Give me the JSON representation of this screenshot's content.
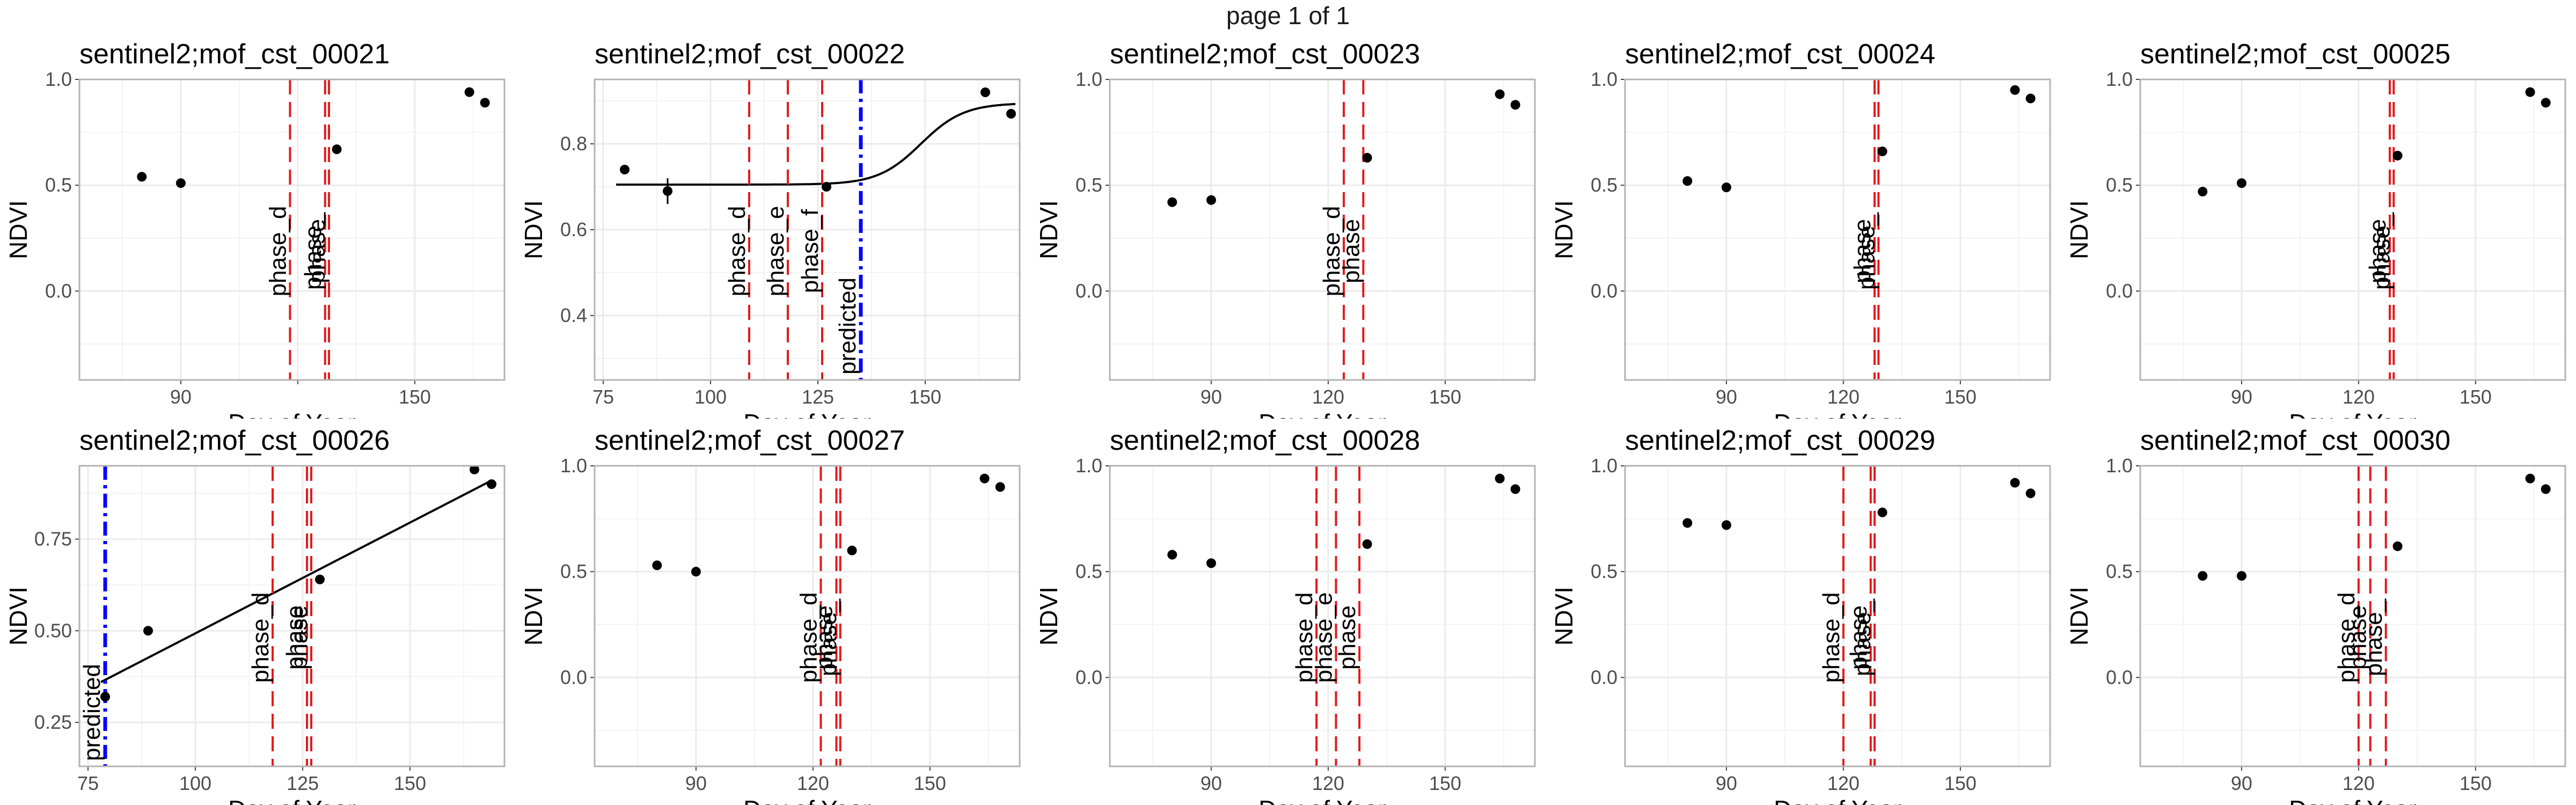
{
  "page_title": "page 1 of 1",
  "colors": {
    "vline": "#e31a1c",
    "predicted": "#0000ff",
    "points": "#000000",
    "grid": "#ebebeb",
    "frame": "#b3b3b3"
  },
  "chart_data": [
    {
      "type": "scatter",
      "title": "sentinel2;mof_cst_00021",
      "xlabel": "Day of Year",
      "ylabel": "NDVI",
      "xlim": [
        64,
        173
      ],
      "ylim": [
        -0.42,
        1.0
      ],
      "xticks": [
        90,
        120,
        150
      ],
      "xtick_labels": [
        "90",
        "",
        "150"
      ],
      "yticks": [
        0.0,
        0.5,
        1.0
      ],
      "ytick_labels": [
        "0.0",
        "0.5",
        "1.0"
      ],
      "points": [
        {
          "x": 80,
          "y": 0.54
        },
        {
          "x": 90,
          "y": 0.51
        },
        {
          "x": 130,
          "y": 0.67
        },
        {
          "x": 164,
          "y": 0.94
        },
        {
          "x": 168,
          "y": 0.89
        }
      ],
      "vlines": [
        {
          "x": 118,
          "label": "phase_d"
        },
        {
          "x": 127,
          "label": "phase_"
        },
        {
          "x": 128,
          "label": "phase"
        }
      ]
    },
    {
      "type": "scatter",
      "title": "sentinel2;mof_cst_00022",
      "xlabel": "Day of Year",
      "ylabel": "NDVI",
      "xlim": [
        73,
        172
      ],
      "ylim": [
        0.25,
        0.95
      ],
      "xticks": [
        75,
        100,
        125,
        150
      ],
      "xtick_labels": [
        "75",
        "100",
        "125",
        "150"
      ],
      "yticks": [
        0.4,
        0.6,
        0.8
      ],
      "ytick_labels": [
        "0.4",
        "0.6",
        "0.8"
      ],
      "points": [
        {
          "x": 80,
          "y": 0.74
        },
        {
          "x": 90,
          "y": 0.69,
          "err": 0.03
        },
        {
          "x": 127,
          "y": 0.7
        },
        {
          "x": 164,
          "y": 0.92
        },
        {
          "x": 170,
          "y": 0.87
        }
      ],
      "curve": {
        "kind": "logistic",
        "base": 0.705,
        "amp": 0.19,
        "mid": 149,
        "scale": 5
      },
      "vlines": [
        {
          "x": 109,
          "label": "phase_d"
        },
        {
          "x": 118,
          "label": "phase_e"
        },
        {
          "x": 126,
          "label": "phase_f"
        }
      ],
      "predicted": {
        "x": 135,
        "label": "predicted"
      }
    },
    {
      "type": "scatter",
      "title": "sentinel2;mof_cst_00023",
      "xlabel": "Day of Year",
      "ylabel": "NDVI",
      "xlim": [
        64,
        173
      ],
      "ylim": [
        -0.42,
        1.0
      ],
      "xticks": [
        90,
        120,
        150
      ],
      "xtick_labels": [
        "90",
        "120",
        "150"
      ],
      "yticks": [
        0.0,
        0.5,
        1.0
      ],
      "ytick_labels": [
        "0.0",
        "0.5",
        "1.0"
      ],
      "points": [
        {
          "x": 80,
          "y": 0.42
        },
        {
          "x": 90,
          "y": 0.43
        },
        {
          "x": 130,
          "y": 0.63
        },
        {
          "x": 164,
          "y": 0.93
        },
        {
          "x": 168,
          "y": 0.88
        }
      ],
      "vlines": [
        {
          "x": 124,
          "label": "phase_d"
        },
        {
          "x": 129,
          "label": "phase"
        }
      ]
    },
    {
      "type": "scatter",
      "title": "sentinel2;mof_cst_00024",
      "xlabel": "Day of Year",
      "ylabel": "NDVI",
      "xlim": [
        64,
        173
      ],
      "ylim": [
        -0.42,
        1.0
      ],
      "xticks": [
        90,
        120,
        150
      ],
      "xtick_labels": [
        "90",
        "120",
        "150"
      ],
      "yticks": [
        0.0,
        0.5,
        1.0
      ],
      "ytick_labels": [
        "0.0",
        "0.5",
        "1.0"
      ],
      "points": [
        {
          "x": 80,
          "y": 0.52
        },
        {
          "x": 90,
          "y": 0.49
        },
        {
          "x": 130,
          "y": 0.66
        },
        {
          "x": 164,
          "y": 0.95
        },
        {
          "x": 168,
          "y": 0.91
        }
      ],
      "vlines": [
        {
          "x": 128,
          "label": "phase"
        },
        {
          "x": 129,
          "label": "phase_"
        }
      ]
    },
    {
      "type": "scatter",
      "title": "sentinel2;mof_cst_00025",
      "xlabel": "Day of Year",
      "ylabel": "NDVI",
      "xlim": [
        64,
        173
      ],
      "ylim": [
        -0.42,
        1.0
      ],
      "xticks": [
        90,
        120,
        150
      ],
      "xtick_labels": [
        "90",
        "120",
        "150"
      ],
      "yticks": [
        0.0,
        0.5,
        1.0
      ],
      "ytick_labels": [
        "0.0",
        "0.5",
        "1.0"
      ],
      "points": [
        {
          "x": 80,
          "y": 0.47
        },
        {
          "x": 90,
          "y": 0.51
        },
        {
          "x": 130,
          "y": 0.64
        },
        {
          "x": 164,
          "y": 0.94
        },
        {
          "x": 168,
          "y": 0.89
        }
      ],
      "vlines": [
        {
          "x": 128,
          "label": "phase"
        },
        {
          "x": 129,
          "label": "phase_"
        }
      ]
    },
    {
      "type": "scatter",
      "title": "sentinel2;mof_cst_00026",
      "xlabel": "Day of Year",
      "ylabel": "NDVI",
      "xlim": [
        73,
        172
      ],
      "ylim": [
        0.13,
        0.95
      ],
      "xticks": [
        75,
        100,
        125,
        150
      ],
      "xtick_labels": [
        "75",
        "100",
        "125",
        "150"
      ],
      "yticks": [
        0.25,
        0.5,
        0.75
      ],
      "ytick_labels": [
        "0.25",
        "0.50",
        "0.75"
      ],
      "points": [
        {
          "x": 79,
          "y": 0.32
        },
        {
          "x": 89,
          "y": 0.5
        },
        {
          "x": 129,
          "y": 0.64
        },
        {
          "x": 165,
          "y": 0.94
        },
        {
          "x": 169,
          "y": 0.9
        }
      ],
      "line": {
        "x1": 78,
        "y1": 0.36,
        "x2": 169,
        "y2": 0.91
      },
      "vlines": [
        {
          "x": 118,
          "label": "phase_d"
        },
        {
          "x": 126,
          "label": "phase"
        },
        {
          "x": 127,
          "label": "phase"
        }
      ],
      "predicted": {
        "x": 79,
        "label": "predicted"
      }
    },
    {
      "type": "scatter",
      "title": "sentinel2;mof_cst_00027",
      "xlabel": "Day of Year",
      "ylabel": "NDVI",
      "xlim": [
        64,
        173
      ],
      "ylim": [
        -0.42,
        1.0
      ],
      "xticks": [
        90,
        120,
        150
      ],
      "xtick_labels": [
        "90",
        "120",
        "150"
      ],
      "yticks": [
        0.0,
        0.5,
        1.0
      ],
      "ytick_labels": [
        "0.0",
        "0.5",
        "1.0"
      ],
      "points": [
        {
          "x": 80,
          "y": 0.53
        },
        {
          "x": 90,
          "y": 0.5
        },
        {
          "x": 130,
          "y": 0.6
        },
        {
          "x": 164,
          "y": 0.94
        },
        {
          "x": 168,
          "y": 0.9
        }
      ],
      "vlines": [
        {
          "x": 122,
          "label": "phase_d"
        },
        {
          "x": 126,
          "label": "phase"
        },
        {
          "x": 127,
          "label": "phase_"
        }
      ]
    },
    {
      "type": "scatter",
      "title": "sentinel2;mof_cst_00028",
      "xlabel": "Day of Year",
      "ylabel": "NDVI",
      "xlim": [
        64,
        173
      ],
      "ylim": [
        -0.42,
        1.0
      ],
      "xticks": [
        90,
        120,
        150
      ],
      "xtick_labels": [
        "90",
        "120",
        "150"
      ],
      "yticks": [
        0.0,
        0.5,
        1.0
      ],
      "ytick_labels": [
        "0.0",
        "0.5",
        "1.0"
      ],
      "points": [
        {
          "x": 80,
          "y": 0.58
        },
        {
          "x": 90,
          "y": 0.54
        },
        {
          "x": 130,
          "y": 0.63
        },
        {
          "x": 164,
          "y": 0.94
        },
        {
          "x": 168,
          "y": 0.89
        }
      ],
      "vlines": [
        {
          "x": 117,
          "label": "phase_d"
        },
        {
          "x": 122,
          "label": "phase_e"
        },
        {
          "x": 128,
          "label": "phase"
        }
      ]
    },
    {
      "type": "scatter",
      "title": "sentinel2;mof_cst_00029",
      "xlabel": "Day of Year",
      "ylabel": "NDVI",
      "xlim": [
        64,
        173
      ],
      "ylim": [
        -0.42,
        1.0
      ],
      "xticks": [
        90,
        120,
        150
      ],
      "xtick_labels": [
        "90",
        "120",
        "150"
      ],
      "yticks": [
        0.0,
        0.5,
        1.0
      ],
      "ytick_labels": [
        "0.0",
        "0.5",
        "1.0"
      ],
      "points": [
        {
          "x": 80,
          "y": 0.73
        },
        {
          "x": 90,
          "y": 0.72
        },
        {
          "x": 130,
          "y": 0.78
        },
        {
          "x": 164,
          "y": 0.92
        },
        {
          "x": 168,
          "y": 0.87
        }
      ],
      "vlines": [
        {
          "x": 120,
          "label": "phase_d"
        },
        {
          "x": 127,
          "label": "phase"
        },
        {
          "x": 128,
          "label": "phase_"
        }
      ]
    },
    {
      "type": "scatter",
      "title": "sentinel2;mof_cst_00030",
      "xlabel": "Day of Year",
      "ylabel": "NDVI",
      "xlim": [
        64,
        173
      ],
      "ylim": [
        -0.42,
        1.0
      ],
      "xticks": [
        90,
        120,
        150
      ],
      "xtick_labels": [
        "90",
        "120",
        "150"
      ],
      "yticks": [
        0.0,
        0.5,
        1.0
      ],
      "ytick_labels": [
        "0.0",
        "0.5",
        "1.0"
      ],
      "points": [
        {
          "x": 80,
          "y": 0.48
        },
        {
          "x": 90,
          "y": 0.48
        },
        {
          "x": 130,
          "y": 0.62
        },
        {
          "x": 164,
          "y": 0.94
        },
        {
          "x": 168,
          "y": 0.89
        }
      ],
      "vlines": [
        {
          "x": 120,
          "label": "phase_d"
        },
        {
          "x": 123,
          "label": "phase"
        },
        {
          "x": 127,
          "label": "phase_"
        }
      ]
    }
  ]
}
